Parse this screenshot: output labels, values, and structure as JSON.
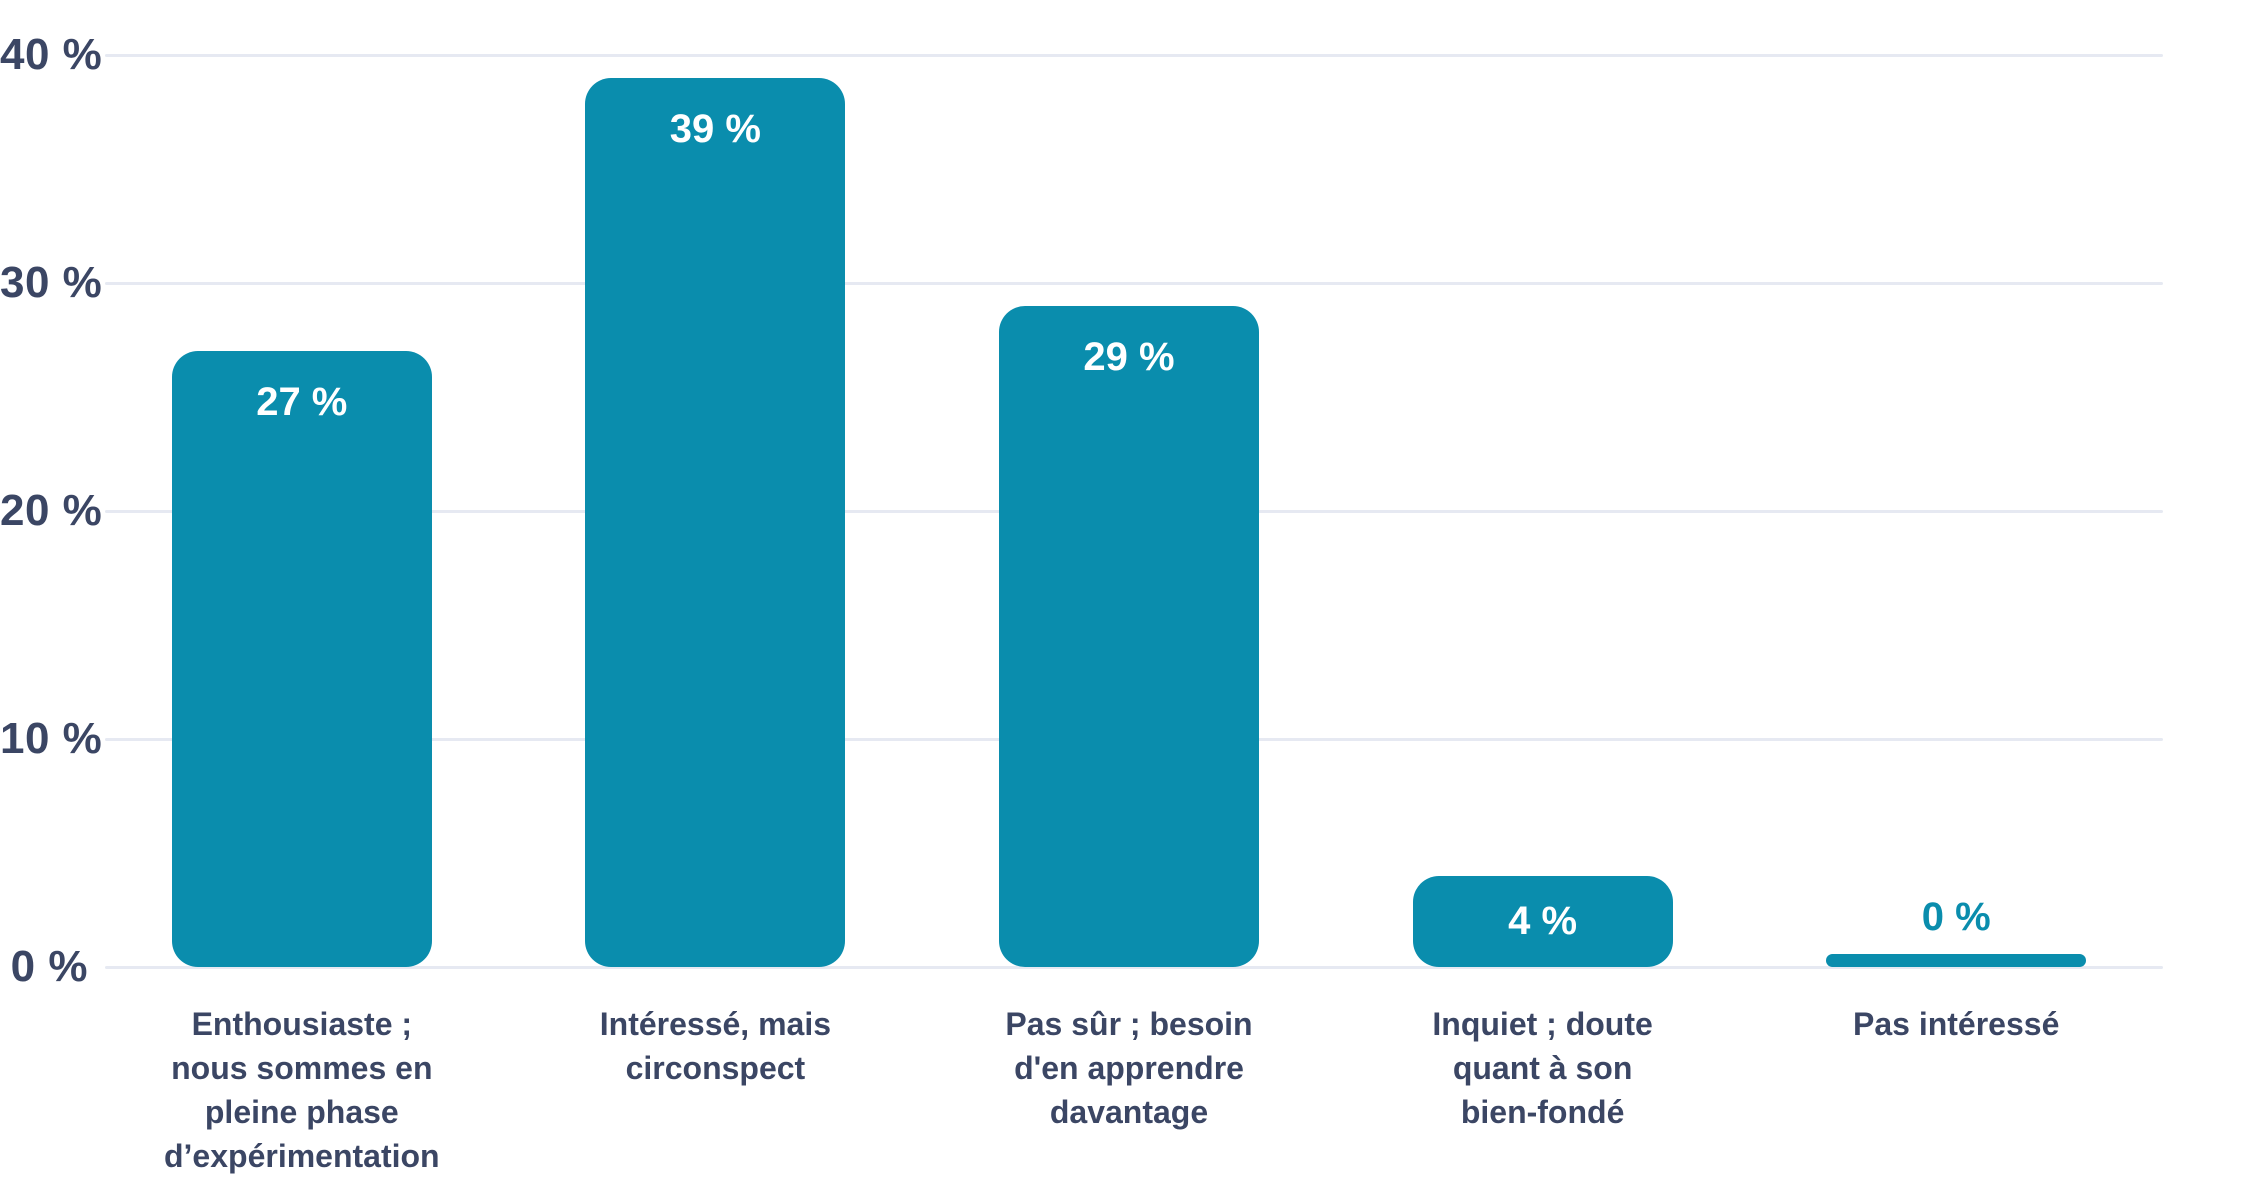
{
  "chart_data": {
    "type": "bar",
    "title": "",
    "categories": [
      "Enthousiaste ; nous sommes en pleine phase d’expérimentation",
      "Intéressé, mais circonspect",
      "Pas sûr ; besoin d'en apprendre davantage",
      "Inquiet ; doute quant à son bien-fondé",
      "Pas intéressé"
    ],
    "category_lines": [
      [
        "Enthousiaste ;",
        "nous sommes en",
        "pleine phase",
        "d’expérimentation"
      ],
      [
        "Intéressé, mais",
        "circonspect"
      ],
      [
        "Pas sûr ; besoin",
        "d'en apprendre",
        "davantage"
      ],
      [
        "Inquiet ; doute",
        "quant à son",
        "bien-fondé"
      ],
      [
        "Pas intéressé"
      ]
    ],
    "values": [
      27,
      39,
      29,
      4,
      0
    ],
    "value_labels": [
      "27 %",
      "39 %",
      "29 %",
      "4 %",
      "0 %"
    ],
    "y_ticks": [
      {
        "value": 0,
        "label": "0 %"
      },
      {
        "value": 10,
        "label": "10 %"
      },
      {
        "value": 20,
        "label": "20 %"
      },
      {
        "value": 30,
        "label": "30 %"
      },
      {
        "value": 40,
        "label": "40 %"
      }
    ],
    "ylim": [
      0,
      40
    ],
    "xlabel": "",
    "ylabel": "",
    "grid": "horizontal",
    "legend": "none",
    "colors": {
      "bar": "#0a8dad",
      "value_label_inside": "#ffffff",
      "value_label_outside": "#0a8dad",
      "axis_text": "#3b4664",
      "gridline": "#e6e9f2",
      "background": "#ffffff"
    }
  }
}
